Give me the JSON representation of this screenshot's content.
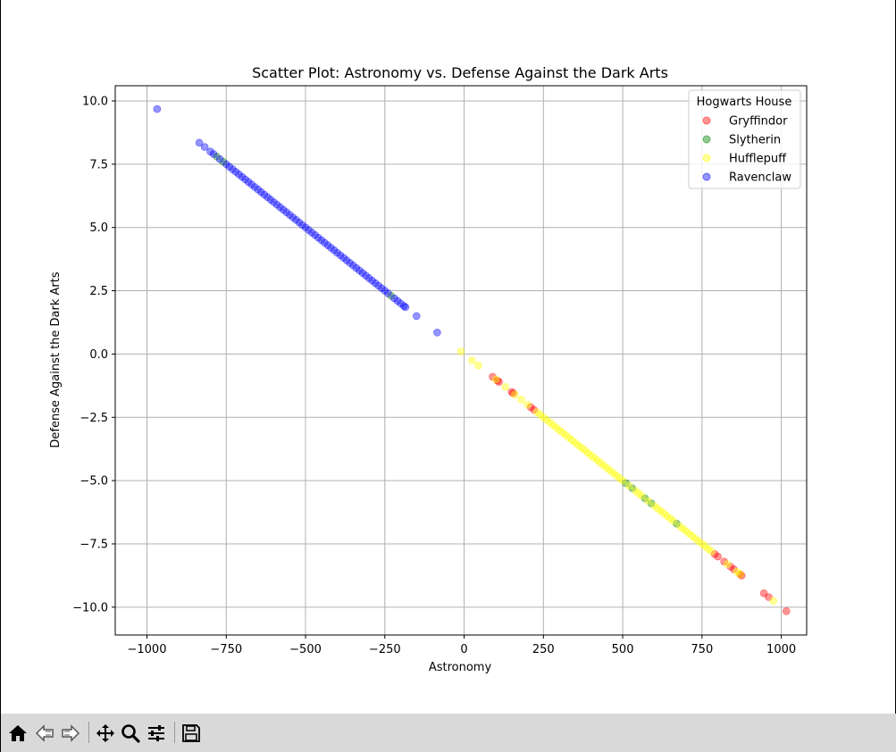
{
  "chart_data": {
    "type": "scatter",
    "title": "Scatter Plot: Astronomy vs. Defense Against the Dark Arts",
    "xlabel": "Astronomy",
    "ylabel": "Defense Against the Dark Arts",
    "xlim": [
      -1100,
      1080
    ],
    "ylim": [
      -11.1,
      10.6
    ],
    "xticks": [
      -1000,
      -750,
      -500,
      -250,
      0,
      250,
      500,
      750,
      1000
    ],
    "xtick_labels": [
      "−1000",
      "−750",
      "−500",
      "−250",
      "0",
      "250",
      "500",
      "750",
      "1000"
    ],
    "yticks": [
      10.0,
      7.5,
      5.0,
      2.5,
      0.0,
      -2.5,
      -5.0,
      -7.5,
      -10.0
    ],
    "ytick_labels": [
      "10.0",
      "7.5",
      "5.0",
      "2.5",
      "0.0",
      "−2.5",
      "−5.0",
      "−7.5",
      "−10.0"
    ],
    "grid": true,
    "legend": {
      "title": "Hogwarts House",
      "placement": "top-right"
    },
    "series": [
      {
        "name": "Gryffindor",
        "color": "#ff0000",
        "points": [
          [
            90,
            -0.9
          ],
          [
            105,
            -1.05
          ],
          [
            110,
            -1.1
          ],
          [
            150,
            -1.5
          ],
          [
            155,
            -1.55
          ],
          [
            210,
            -2.1
          ],
          [
            220,
            -2.2
          ],
          [
            790,
            -7.9
          ],
          [
            800,
            -8.0
          ],
          [
            820,
            -8.2
          ],
          [
            840,
            -8.4
          ],
          [
            850,
            -8.5
          ],
          [
            870,
            -8.7
          ],
          [
            875,
            -8.75
          ],
          [
            945,
            -9.45
          ],
          [
            960,
            -9.6
          ],
          [
            1016,
            -10.16
          ]
        ]
      },
      {
        "name": "Slytherin",
        "color": "#008000",
        "points": [
          [
            510,
            -5.1
          ],
          [
            530,
            -5.3
          ],
          [
            570,
            -5.7
          ],
          [
            590,
            -5.9
          ],
          [
            670,
            -6.7
          ],
          [
            -780,
            7.8
          ],
          [
            -760,
            7.6
          ],
          [
            -230,
            2.3
          ]
        ]
      },
      {
        "name": "Hufflepuff",
        "color": "#ffff00",
        "points": [
          [
            -10,
            0.1
          ],
          [
            25,
            -0.25
          ],
          [
            45,
            -0.45
          ],
          [
            100,
            -1.0
          ],
          [
            130,
            -1.3
          ],
          [
            160,
            -1.6
          ],
          [
            180,
            -1.8
          ],
          [
            200,
            -2.0
          ],
          [
            230,
            -2.3
          ],
          [
            240,
            -2.4
          ],
          [
            250,
            -2.5
          ],
          [
            260,
            -2.6
          ],
          [
            270,
            -2.7
          ],
          [
            280,
            -2.8
          ],
          [
            290,
            -2.9
          ],
          [
            300,
            -3.0
          ],
          [
            310,
            -3.1
          ],
          [
            320,
            -3.2
          ],
          [
            330,
            -3.3
          ],
          [
            340,
            -3.4
          ],
          [
            350,
            -3.5
          ],
          [
            360,
            -3.6
          ],
          [
            370,
            -3.7
          ],
          [
            380,
            -3.8
          ],
          [
            390,
            -3.9
          ],
          [
            400,
            -4.0
          ],
          [
            410,
            -4.1
          ],
          [
            420,
            -4.2
          ],
          [
            430,
            -4.3
          ],
          [
            440,
            -4.4
          ],
          [
            450,
            -4.5
          ],
          [
            460,
            -4.6
          ],
          [
            470,
            -4.7
          ],
          [
            480,
            -4.8
          ],
          [
            490,
            -4.9
          ],
          [
            500,
            -5.0
          ],
          [
            520,
            -5.2
          ],
          [
            540,
            -5.4
          ],
          [
            550,
            -5.5
          ],
          [
            560,
            -5.6
          ],
          [
            580,
            -5.8
          ],
          [
            600,
            -6.0
          ],
          [
            610,
            -6.1
          ],
          [
            620,
            -6.2
          ],
          [
            630,
            -6.3
          ],
          [
            640,
            -6.4
          ],
          [
            650,
            -6.5
          ],
          [
            660,
            -6.6
          ],
          [
            680,
            -6.8
          ],
          [
            690,
            -6.9
          ],
          [
            700,
            -7.0
          ],
          [
            710,
            -7.1
          ],
          [
            720,
            -7.2
          ],
          [
            730,
            -7.3
          ],
          [
            740,
            -7.4
          ],
          [
            750,
            -7.5
          ],
          [
            760,
            -7.6
          ],
          [
            770,
            -7.7
          ],
          [
            780,
            -7.8
          ],
          [
            830,
            -8.3
          ],
          [
            860,
            -8.6
          ],
          [
            870,
            -8.7
          ],
          [
            975,
            -9.75
          ]
        ]
      },
      {
        "name": "Ravenclaw",
        "color": "#0000ff",
        "points": [
          [
            -968,
            9.68
          ],
          [
            -835,
            8.35
          ],
          [
            -818,
            8.18
          ],
          [
            -800,
            8.0
          ],
          [
            -790,
            7.9
          ],
          [
            -770,
            7.7
          ],
          [
            -750,
            7.5
          ],
          [
            -740,
            7.4
          ],
          [
            -730,
            7.3
          ],
          [
            -720,
            7.2
          ],
          [
            -710,
            7.1
          ],
          [
            -700,
            7.0
          ],
          [
            -690,
            6.9
          ],
          [
            -680,
            6.8
          ],
          [
            -670,
            6.7
          ],
          [
            -660,
            6.6
          ],
          [
            -650,
            6.5
          ],
          [
            -640,
            6.4
          ],
          [
            -630,
            6.3
          ],
          [
            -620,
            6.2
          ],
          [
            -610,
            6.1
          ],
          [
            -600,
            6.0
          ],
          [
            -590,
            5.9
          ],
          [
            -580,
            5.8
          ],
          [
            -570,
            5.7
          ],
          [
            -560,
            5.6
          ],
          [
            -550,
            5.5
          ],
          [
            -540,
            5.4
          ],
          [
            -530,
            5.3
          ],
          [
            -520,
            5.2
          ],
          [
            -510,
            5.1
          ],
          [
            -500,
            5.0
          ],
          [
            -490,
            4.9
          ],
          [
            -480,
            4.8
          ],
          [
            -470,
            4.7
          ],
          [
            -460,
            4.6
          ],
          [
            -450,
            4.5
          ],
          [
            -440,
            4.4
          ],
          [
            -430,
            4.3
          ],
          [
            -420,
            4.2
          ],
          [
            -410,
            4.1
          ],
          [
            -400,
            4.0
          ],
          [
            -390,
            3.9
          ],
          [
            -380,
            3.8
          ],
          [
            -370,
            3.7
          ],
          [
            -360,
            3.6
          ],
          [
            -350,
            3.5
          ],
          [
            -340,
            3.4
          ],
          [
            -330,
            3.3
          ],
          [
            -320,
            3.2
          ],
          [
            -310,
            3.1
          ],
          [
            -300,
            3.0
          ],
          [
            -290,
            2.9
          ],
          [
            -280,
            2.8
          ],
          [
            -270,
            2.7
          ],
          [
            -260,
            2.6
          ],
          [
            -250,
            2.5
          ],
          [
            -240,
            2.4
          ],
          [
            -220,
            2.2
          ],
          [
            -210,
            2.1
          ],
          [
            -200,
            2.0
          ],
          [
            -190,
            1.9
          ],
          [
            -185,
            1.85
          ],
          [
            -150,
            1.5
          ],
          [
            -85,
            0.85
          ]
        ]
      }
    ]
  },
  "toolbar": {
    "buttons": [
      {
        "name": "home",
        "icon": "home-icon"
      },
      {
        "name": "back",
        "icon": "back-arrow-icon"
      },
      {
        "name": "forward",
        "icon": "forward-arrow-icon"
      },
      {
        "name": "pan",
        "icon": "move-icon"
      },
      {
        "name": "zoom",
        "icon": "zoom-icon"
      },
      {
        "name": "configure-subplots",
        "icon": "sliders-icon"
      },
      {
        "name": "save",
        "icon": "save-icon"
      }
    ]
  }
}
